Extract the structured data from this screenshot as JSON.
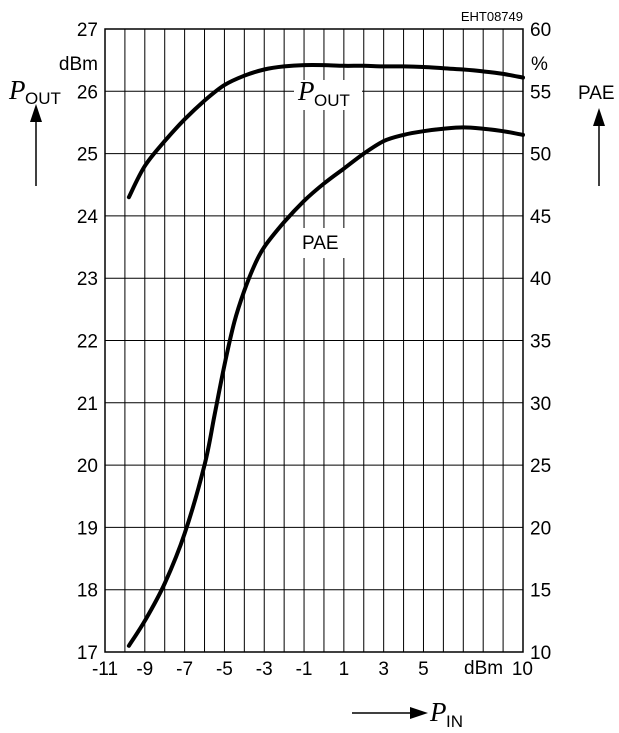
{
  "chart_data": {
    "type": "line",
    "code": "EHT08749",
    "x_axis": {
      "symbol": "P",
      "subscript": "IN",
      "unit": "dBm",
      "range": [
        -11,
        10
      ],
      "tick_labels": [
        "-11",
        "-9",
        "-7",
        "-5",
        "-3",
        "-1",
        "1",
        "3",
        "5",
        "10"
      ]
    },
    "y_left": {
      "symbol": "P",
      "subscript": "OUT",
      "unit": "dBm",
      "range": [
        17,
        27
      ],
      "tick_labels": [
        "17",
        "18",
        "19",
        "20",
        "21",
        "22",
        "23",
        "24",
        "25",
        "26",
        "27"
      ]
    },
    "y_right": {
      "label": "PAE",
      "unit": "%",
      "range": [
        10,
        60
      ],
      "tick_labels": [
        "10",
        "15",
        "20",
        "25",
        "30",
        "35",
        "40",
        "45",
        "50",
        "55",
        "60"
      ]
    },
    "grid": true,
    "series": [
      {
        "name_symbol": "P",
        "name_subscript": "OUT",
        "axis": "left",
        "x": [
          -9.8,
          -9,
          -8,
          -7,
          -6,
          -5,
          -4,
          -3,
          -2,
          -1,
          0,
          1,
          2,
          3,
          4,
          5,
          6,
          7,
          8,
          9,
          10
        ],
        "y": [
          24.3,
          24.8,
          25.2,
          25.55,
          25.85,
          26.1,
          26.25,
          26.35,
          26.4,
          26.42,
          26.42,
          26.41,
          26.41,
          26.4,
          26.4,
          26.39,
          26.37,
          26.35,
          26.32,
          26.28,
          26.22
        ]
      },
      {
        "name": "PAE",
        "axis": "right",
        "x": [
          -9.8,
          -9,
          -8,
          -7,
          -6,
          -5.5,
          -5,
          -4.5,
          -4,
          -3.5,
          -3,
          -2,
          -1,
          0,
          1,
          2,
          3,
          4,
          5,
          6,
          7,
          8,
          9,
          10
        ],
        "y": [
          10.5,
          12.5,
          15.5,
          19.5,
          25,
          29,
          33,
          36.5,
          39,
          41,
          42.5,
          44.5,
          46.2,
          47.6,
          48.8,
          50,
          51,
          51.5,
          51.8,
          52,
          52.1,
          52,
          51.8,
          51.5
        ]
      }
    ]
  }
}
